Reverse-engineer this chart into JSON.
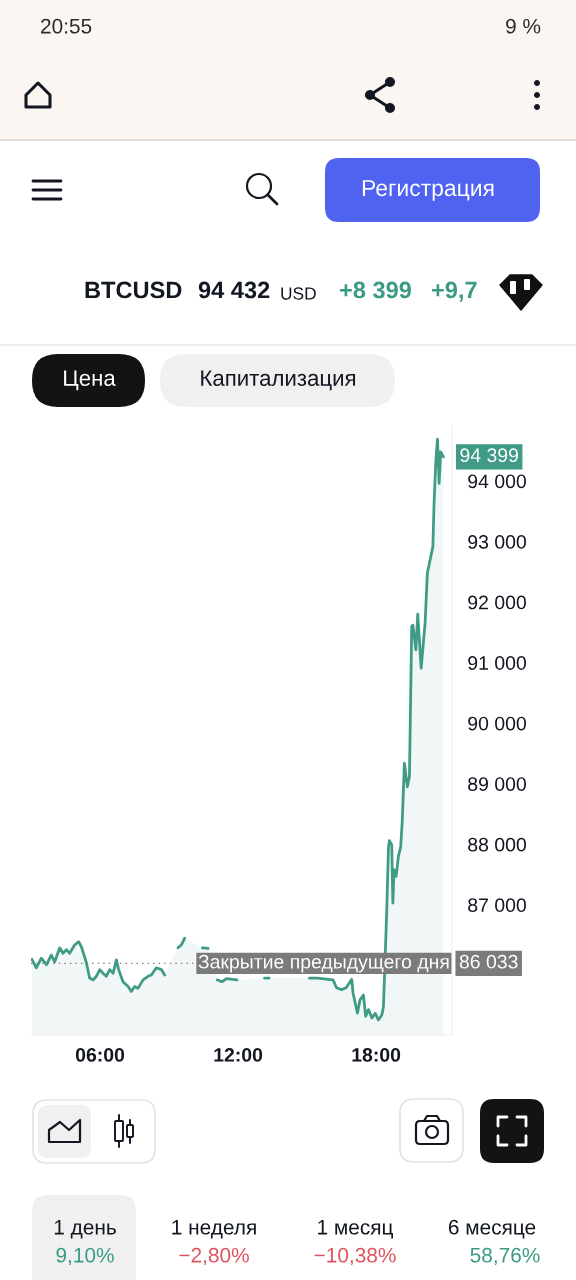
{
  "chart_data": {
    "type": "area",
    "title": "BTCUSD",
    "subtitle": "94 432",
    "x": [
      3.04,
      3.23,
      3.45,
      3.67,
      3.88,
      4.03,
      4.25,
      4.39,
      4.54,
      4.68,
      4.9,
      5.07,
      5.19,
      5.41,
      5.55,
      5.7,
      5.84,
      5.99,
      6.13,
      6.27,
      6.42,
      6.57,
      6.71,
      6.81,
      7.0,
      7.22,
      7.36,
      7.51,
      7.65,
      7.87,
      8.09,
      8.23,
      8.45,
      8.67,
      8.81,
      9.03,
      9.39,
      9.54,
      9.68,
      9.8,
      10.1,
      10.45,
      10.7,
      10.9,
      11.1,
      11.3,
      11.5,
      11.95,
      12.5,
      13.15,
      13.35,
      14.3,
      15.1,
      15.45,
      16.13,
      16.28,
      16.5,
      16.7,
      16.94,
      17.0,
      17.19,
      17.3,
      17.45,
      17.55,
      17.67,
      17.82,
      17.96,
      18.1,
      18.25,
      18.32,
      18.46,
      18.54,
      18.58,
      18.68,
      18.73,
      18.78,
      18.87,
      18.97,
      19.07,
      19.14,
      19.23,
      19.36,
      19.45,
      19.55,
      19.6,
      19.73,
      19.81,
      19.96,
      20.13,
      20.23,
      20.35,
      20.47,
      20.52,
      20.6,
      20.67,
      20.74,
      20.81,
      20.93
    ],
    "series": [
      {
        "color": "#3f9b86",
        "values": [
          86100,
          85960,
          86120,
          86010,
          86170,
          86060,
          86290,
          86200,
          86260,
          86200,
          86340,
          86390,
          86310,
          86040,
          85790,
          85760,
          85820,
          85930,
          85870,
          85820,
          85930,
          85870,
          86090,
          85930,
          85730,
          85650,
          85570,
          85650,
          85620,
          85760,
          85820,
          85840,
          85960,
          85930,
          85840,
          null,
          86290,
          86340,
          86450,
          null,
          null,
          86290,
          86280,
          null,
          85760,
          85730,
          85780,
          85760,
          null,
          85790,
          85790,
          null,
          85790,
          85790,
          85760,
          85630,
          85600,
          85630,
          85770,
          85540,
          85210,
          85430,
          85510,
          85160,
          85270,
          85130,
          85210,
          85100,
          85180,
          85320,
          86860,
          87960,
          88060,
          87990,
          87030,
          87580,
          87470,
          87800,
          87960,
          88400,
          89340,
          88950,
          89120,
          91600,
          91620,
          91210,
          91800,
          90910,
          91650,
          92480,
          92700,
          92920,
          93630,
          94350,
          94690,
          93960,
          94480,
          94399
        ]
      }
    ],
    "xlim": [
      3.0,
      21.3
    ],
    "xticks": [
      {
        "value": 6,
        "label": "06:00"
      },
      {
        "value": 12,
        "label": "12:00"
      },
      {
        "value": 18,
        "label": "18:00"
      }
    ],
    "ylim": [
      84850,
      94925
    ],
    "yticks": [
      {
        "value": 87000,
        "label": "87 000"
      },
      {
        "value": 88000,
        "label": "88 000"
      },
      {
        "value": 89000,
        "label": "89 000"
      },
      {
        "value": 90000,
        "label": "90 000"
      },
      {
        "value": 91000,
        "label": "91 000"
      },
      {
        "value": 92000,
        "label": "92 000"
      },
      {
        "value": 93000,
        "label": "93 000"
      },
      {
        "value": 94000,
        "label": "94 000"
      }
    ],
    "ref_lines": [
      {
        "axis": "y",
        "value": 86033,
        "label": "Закрытие предыдущего дня",
        "color": "#7b7b7b",
        "line_style": "dotted"
      }
    ],
    "annotations": [
      "20:55",
      "9 %",
      "Регистрация",
      "USD",
      "+8 399",
      "+9,7",
      "Цена",
      "Капитализация",
      "1 день",
      "9,10%",
      "1 неделя",
      "−2,80%",
      "1 месяц",
      "−10,38%",
      "6 месяце",
      "58,76%",
      {
        "text": "94 399",
        "x": 20.93,
        "y": 94399
      },
      "86 033"
    ]
  }
}
